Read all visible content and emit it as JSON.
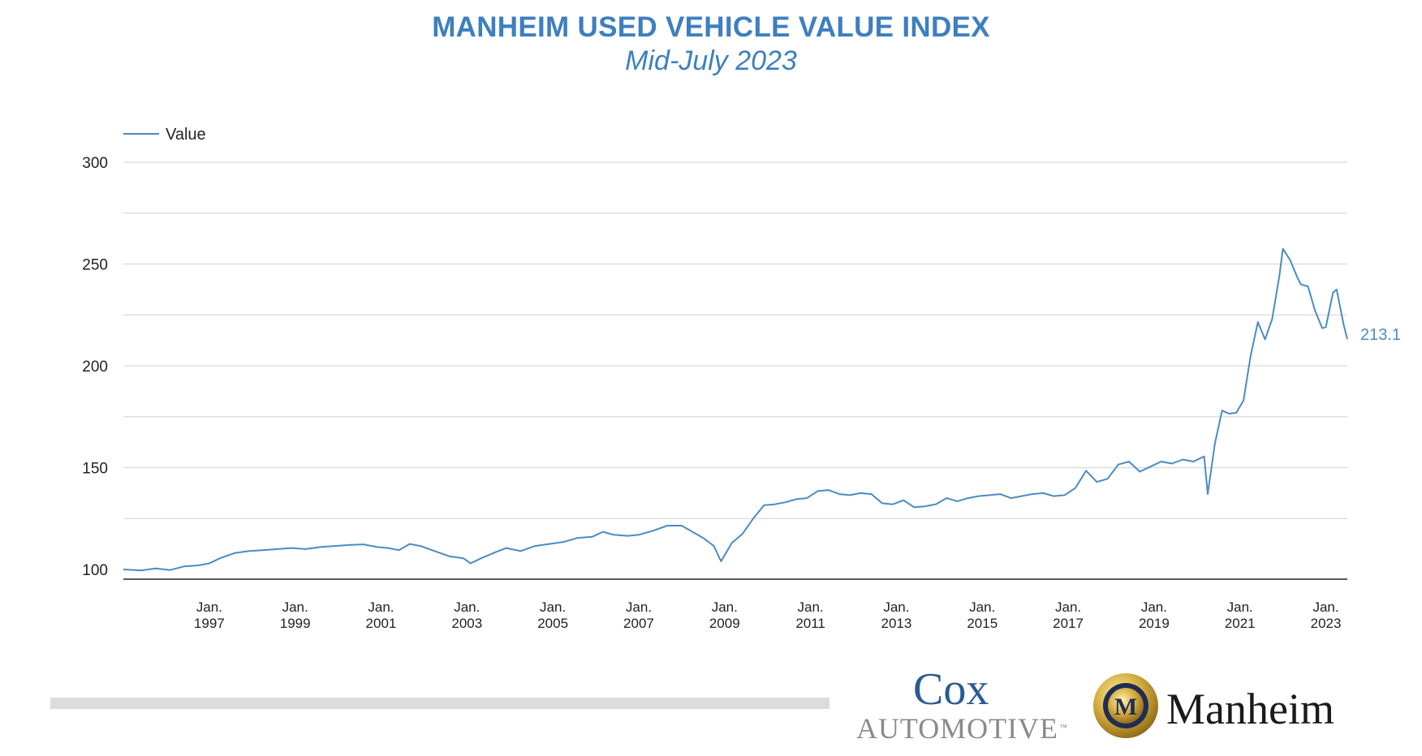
{
  "header": {
    "title": "MANHEIM USED VEHICLE VALUE INDEX",
    "subtitle": "Mid-July 2023"
  },
  "colors": {
    "accent": "#3d7fc0",
    "line": "#4a8cc2",
    "grid": "#d9d9d9",
    "axis": "#222222",
    "footer_bar": "#dcdcdc"
  },
  "logos": {
    "cox_top": "Cox",
    "cox_bottom": "AUTOMOTIVE",
    "cox_tm": "™",
    "manheim": "Manheim",
    "manheim_badge": "M"
  },
  "chart_data": {
    "type": "line",
    "title": "MANHEIM USED VEHICLE VALUE INDEX",
    "subtitle": "Mid-July 2023",
    "ylim": [
      100,
      300
    ],
    "y_ticks": [
      "100",
      "150",
      "200",
      "250",
      "300"
    ],
    "grid": true,
    "legend_position": "top-left",
    "x_ticks": [
      {
        "line1": "Jan.",
        "line2": "1997",
        "date": "1997-01"
      },
      {
        "line1": "Jan.",
        "line2": "1999",
        "date": "1999-01"
      },
      {
        "line1": "Jan.",
        "line2": "2001",
        "date": "2001-01"
      },
      {
        "line1": "Jan.",
        "line2": "2003",
        "date": "2003-01"
      },
      {
        "line1": "Jan.",
        "line2": "2005",
        "date": "2005-01"
      },
      {
        "line1": "Jan.",
        "line2": "2007",
        "date": "2007-01"
      },
      {
        "line1": "Jan.",
        "line2": "2009",
        "date": "2009-01"
      },
      {
        "line1": "Jan.",
        "line2": "2011",
        "date": "2011-01"
      },
      {
        "line1": "Jan.",
        "line2": "2013",
        "date": "2013-01"
      },
      {
        "line1": "Jan.",
        "line2": "2015",
        "date": "2015-01"
      },
      {
        "line1": "Jan.",
        "line2": "2017",
        "date": "2017-01"
      },
      {
        "line1": "Jan.",
        "line2": "2019",
        "date": "2019-01"
      },
      {
        "line1": "Jan.",
        "line2": "2021",
        "date": "2021-01"
      },
      {
        "line1": "Jan.",
        "line2": "2023",
        "date": "2023-01"
      }
    ],
    "end_label": "213.1",
    "series": [
      {
        "name": "Value",
        "points": [
          [
            "1995-01",
            100.0
          ],
          [
            "1995-06",
            99.5
          ],
          [
            "1995-10",
            100.5
          ],
          [
            "1996-02",
            99.7
          ],
          [
            "1996-06",
            101.5
          ],
          [
            "1996-10",
            102.0
          ],
          [
            "1997-01",
            103.0
          ],
          [
            "1997-04",
            105.5
          ],
          [
            "1997-08",
            108.0
          ],
          [
            "1997-12",
            109.0
          ],
          [
            "1998-04",
            109.5
          ],
          [
            "1998-08",
            110.0
          ],
          [
            "1998-12",
            110.5
          ],
          [
            "1999-04",
            110.0
          ],
          [
            "1999-08",
            111.0
          ],
          [
            "1999-12",
            111.5
          ],
          [
            "2000-04",
            112.0
          ],
          [
            "2000-08",
            112.3
          ],
          [
            "2000-12",
            111.0
          ],
          [
            "2001-03",
            110.5
          ],
          [
            "2001-06",
            109.5
          ],
          [
            "2001-09",
            112.5
          ],
          [
            "2001-12",
            111.5
          ],
          [
            "2002-04",
            109.0
          ],
          [
            "2002-08",
            106.5
          ],
          [
            "2002-12",
            105.5
          ],
          [
            "2003-02",
            103.0
          ],
          [
            "2003-05",
            105.5
          ],
          [
            "2003-09",
            108.5
          ],
          [
            "2003-12",
            110.5
          ],
          [
            "2004-04",
            109.0
          ],
          [
            "2004-08",
            111.5
          ],
          [
            "2004-12",
            112.5
          ],
          [
            "2005-04",
            113.5
          ],
          [
            "2005-08",
            115.5
          ],
          [
            "2005-12",
            116.0
          ],
          [
            "2006-03",
            118.5
          ],
          [
            "2006-06",
            117.0
          ],
          [
            "2006-10",
            116.5
          ],
          [
            "2007-01",
            117.0
          ],
          [
            "2007-05",
            119.0
          ],
          [
            "2007-09",
            121.5
          ],
          [
            "2008-01",
            121.5
          ],
          [
            "2008-04",
            118.5
          ],
          [
            "2008-07",
            115.5
          ],
          [
            "2008-10",
            111.5
          ],
          [
            "2008-12",
            104.0
          ],
          [
            "2009-03",
            113.0
          ],
          [
            "2009-06",
            117.5
          ],
          [
            "2009-09",
            125.0
          ],
          [
            "2009-12",
            131.5
          ],
          [
            "2010-03",
            132.0
          ],
          [
            "2010-06",
            133.0
          ],
          [
            "2010-09",
            134.5
          ],
          [
            "2010-12",
            135.0
          ],
          [
            "2011-03",
            138.5
          ],
          [
            "2011-06",
            139.0
          ],
          [
            "2011-09",
            137.0
          ],
          [
            "2011-12",
            136.5
          ],
          [
            "2012-03",
            137.5
          ],
          [
            "2012-06",
            137.0
          ],
          [
            "2012-09",
            132.5
          ],
          [
            "2012-12",
            132.0
          ],
          [
            "2013-03",
            134.0
          ],
          [
            "2013-06",
            130.5
          ],
          [
            "2013-09",
            131.0
          ],
          [
            "2013-12",
            132.0
          ],
          [
            "2014-03",
            135.0
          ],
          [
            "2014-06",
            133.5
          ],
          [
            "2014-09",
            135.0
          ],
          [
            "2014-12",
            136.0
          ],
          [
            "2015-03",
            136.5
          ],
          [
            "2015-06",
            137.0
          ],
          [
            "2015-09",
            135.0
          ],
          [
            "2015-12",
            136.0
          ],
          [
            "2016-03",
            137.0
          ],
          [
            "2016-06",
            137.5
          ],
          [
            "2016-09",
            136.0
          ],
          [
            "2016-12",
            136.5
          ],
          [
            "2017-03",
            140.0
          ],
          [
            "2017-06",
            148.5
          ],
          [
            "2017-09",
            143.0
          ],
          [
            "2017-12",
            144.5
          ],
          [
            "2018-03",
            151.5
          ],
          [
            "2018-06",
            153.0
          ],
          [
            "2018-09",
            148.0
          ],
          [
            "2018-12",
            150.5
          ],
          [
            "2019-03",
            153.0
          ],
          [
            "2019-06",
            152.0
          ],
          [
            "2019-09",
            154.0
          ],
          [
            "2019-12",
            153.0
          ],
          [
            "2020-03",
            155.5
          ],
          [
            "2020-04",
            137.0
          ],
          [
            "2020-06",
            162.0
          ],
          [
            "2020-08",
            178.0
          ],
          [
            "2020-10",
            176.5
          ],
          [
            "2020-12",
            177.0
          ],
          [
            "2021-02",
            183.0
          ],
          [
            "2021-04",
            205.0
          ],
          [
            "2021-06",
            221.5
          ],
          [
            "2021-08",
            213.0
          ],
          [
            "2021-10",
            223.0
          ],
          [
            "2021-12",
            244.0
          ],
          [
            "2022-01",
            257.5
          ],
          [
            "2022-03",
            252.0
          ],
          [
            "2022-05",
            243.5
          ],
          [
            "2022-06",
            240.0
          ],
          [
            "2022-08",
            239.0
          ],
          [
            "2022-10",
            227.0
          ],
          [
            "2022-12",
            218.5
          ],
          [
            "2023-01",
            219.0
          ],
          [
            "2023-03",
            236.0
          ],
          [
            "2023-04",
            237.5
          ],
          [
            "2023-06",
            220.0
          ],
          [
            "2023-07",
            213.1
          ]
        ]
      }
    ]
  }
}
